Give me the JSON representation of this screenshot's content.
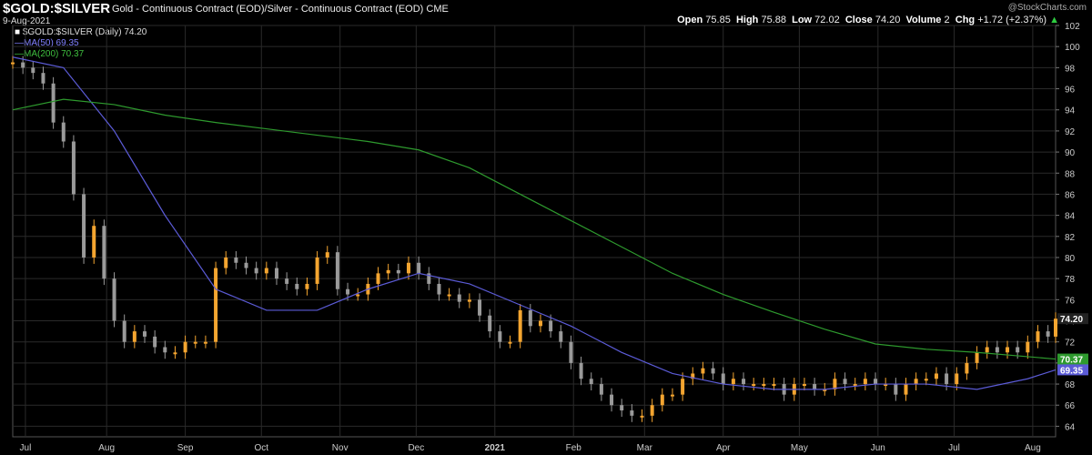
{
  "header": {
    "symbol": "$GOLD:$SILVER",
    "description": "Gold - Continuous Contract (EOD)/Silver - Continuous Contract (EOD)",
    "exchange": "CME",
    "date": "9-Aug-2021",
    "copyright": "@StockCharts.com",
    "open_label": "Open",
    "open": "75.85",
    "high_label": "High",
    "high": "75.88",
    "low_label": "Low",
    "low": "72.02",
    "close_label": "Close",
    "close": "74.20",
    "volume_label": "Volume",
    "volume": "2",
    "chg_label": "Chg",
    "chg": "+1.72 (+2.37%)",
    "arrow": "up-triangle-icon"
  },
  "legend": {
    "price": "$GOLD:$SILVER (Daily) 74.20",
    "ma50": "MA(50) 69.35",
    "ma200": "MA(200) 70.37"
  },
  "colors": {
    "background": "#000000",
    "up_candle": "#f4a530",
    "down_candle": "#9a9a9a",
    "ma50": "#5b5bd6",
    "ma200": "#2e9a2e",
    "grid": "#2a2a2a"
  },
  "chart_data": {
    "type": "candlestick",
    "title": "$GOLD:$SILVER",
    "ylim": [
      63,
      102
    ],
    "y_ticks": [
      64,
      66,
      68,
      70,
      72,
      74,
      76,
      78,
      80,
      82,
      84,
      86,
      88,
      90,
      92,
      94,
      96,
      98,
      100,
      102
    ],
    "x_ticks": [
      "Jul",
      "Aug",
      "Sep",
      "Oct",
      "Nov",
      "Dec",
      "2021",
      "Feb",
      "Mar",
      "Apr",
      "May",
      "Jun",
      "Jul",
      "Aug"
    ],
    "x_tick_days": [
      5,
      37,
      68,
      98,
      129,
      159,
      190,
      221,
      249,
      280,
      310,
      341,
      371,
      402
    ],
    "x_range_days": [
      0,
      411
    ],
    "grid": true,
    "last_value_labels": [
      {
        "value": 74.2,
        "label": "74.20",
        "color": "#ffffff",
        "bg": "#222222"
      },
      {
        "value": 70.37,
        "label": "70.37",
        "color": "#ffffff",
        "bg": "#2e9a2e"
      },
      {
        "value": 69.35,
        "label": "69.35",
        "color": "#ffffff",
        "bg": "#5b5bd6"
      }
    ],
    "price_series": {
      "name": "$GOLD:$SILVER (Daily)",
      "day": [
        0,
        4,
        8,
        12,
        16,
        20,
        24,
        28,
        32,
        36,
        40,
        44,
        48,
        52,
        56,
        60,
        64,
        68,
        72,
        76,
        80,
        84,
        88,
        92,
        96,
        100,
        104,
        108,
        112,
        116,
        120,
        124,
        128,
        132,
        136,
        140,
        144,
        148,
        152,
        156,
        160,
        164,
        168,
        172,
        176,
        180,
        184,
        188,
        192,
        196,
        200,
        204,
        208,
        212,
        216,
        220,
        224,
        228,
        232,
        236,
        240,
        244,
        248,
        252,
        256,
        260,
        264,
        268,
        272,
        276,
        280,
        284,
        288,
        292,
        296,
        300,
        304,
        308,
        312,
        316,
        320,
        324,
        328,
        332,
        336,
        340,
        344,
        348,
        352,
        356,
        360,
        364,
        368,
        372,
        376,
        380,
        384,
        388,
        392,
        396,
        400,
        404,
        408,
        411
      ],
      "close": [
        98.5,
        98.0,
        97.5,
        96.5,
        92.8,
        91.0,
        86.0,
        80.0,
        83.0,
        78.0,
        74.0,
        72.0,
        73.0,
        72.5,
        71.5,
        71.0,
        71.0,
        72.0,
        72.0,
        72.0,
        79.0,
        80.0,
        79.5,
        79.0,
        78.5,
        79.0,
        78.0,
        77.5,
        77.0,
        77.5,
        80.0,
        80.5,
        77.0,
        76.5,
        76.5,
        77.5,
        78.5,
        78.8,
        78.5,
        79.5,
        78.5,
        77.5,
        76.5,
        76.5,
        75.8,
        76.0,
        74.5,
        73.0,
        72.0,
        72.0,
        75.0,
        73.5,
        74.0,
        73.0,
        72.0,
        70.0,
        68.5,
        68.0,
        67.0,
        66.0,
        65.5,
        65.0,
        65.0,
        66.0,
        67.0,
        67.0,
        68.5,
        69.0,
        69.5,
        69.0,
        68.0,
        68.5,
        68.0,
        68.0,
        68.0,
        68.0,
        67.0,
        68.0,
        68.0,
        67.5,
        67.5,
        68.5,
        68.0,
        68.0,
        68.5,
        68.0,
        68.0,
        67.0,
        68.0,
        68.5,
        68.5,
        69.0,
        68.0,
        69.0,
        70.0,
        71.0,
        71.5,
        71.0,
        71.5,
        71.0,
        72.0,
        73.0,
        72.5,
        74.2
      ]
    },
    "series": [
      {
        "name": "MA(50)",
        "day": [
          0,
          20,
          40,
          60,
          80,
          100,
          120,
          140,
          160,
          180,
          200,
          220,
          240,
          260,
          280,
          300,
          320,
          340,
          360,
          380,
          400,
          411
        ],
        "values": [
          99.0,
          98.0,
          92.0,
          84.0,
          77.0,
          75.0,
          75.0,
          77.0,
          78.5,
          77.5,
          75.5,
          73.5,
          71.0,
          69.0,
          68.0,
          67.5,
          67.5,
          68.0,
          68.0,
          67.5,
          68.5,
          69.35
        ]
      },
      {
        "name": "MA(200)",
        "day": [
          0,
          20,
          40,
          60,
          80,
          100,
          120,
          140,
          160,
          180,
          200,
          220,
          240,
          260,
          280,
          300,
          320,
          340,
          360,
          380,
          400,
          411
        ],
        "values": [
          94.0,
          95.0,
          94.5,
          93.5,
          92.8,
          92.2,
          91.6,
          91.0,
          90.2,
          88.5,
          86.0,
          83.5,
          81.0,
          78.5,
          76.5,
          74.8,
          73.2,
          71.8,
          71.3,
          71.0,
          70.6,
          70.37
        ]
      }
    ]
  }
}
